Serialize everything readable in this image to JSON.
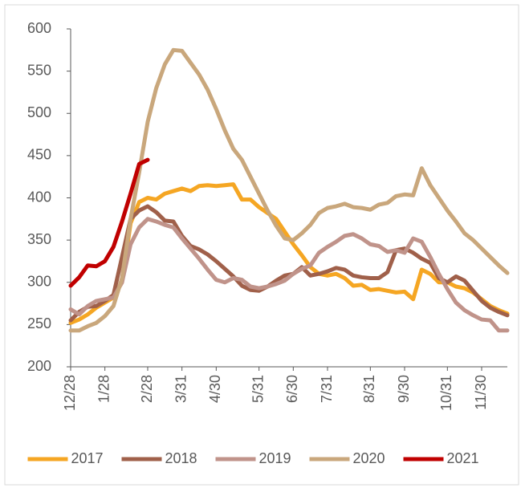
{
  "chart_data": {
    "type": "line",
    "categories": [
      "12/28",
      null,
      null,
      null,
      "1/28",
      null,
      null,
      null,
      null,
      "2/28",
      null,
      null,
      null,
      "3/31",
      null,
      null,
      null,
      "4/30",
      null,
      null,
      null,
      null,
      "5/31",
      null,
      null,
      null,
      "6/30",
      null,
      null,
      null,
      "7/31",
      null,
      null,
      null,
      null,
      "8/31",
      null,
      null,
      null,
      "9/30",
      null,
      null,
      null,
      null,
      "10/31",
      null,
      null,
      null,
      "11/30",
      null,
      null,
      null
    ],
    "series": [
      {
        "name": "2017",
        "color": "#f5a623",
        "values": [
          252,
          256,
          262,
          270,
          276,
          282,
          300,
          370,
          395,
          400,
          398,
          405,
          408,
          411,
          408,
          414,
          415,
          414,
          415,
          416,
          398,
          398,
          389,
          382,
          375,
          360,
          345,
          332,
          318,
          310,
          308,
          310,
          305,
          296,
          297,
          291,
          292,
          290,
          288,
          289,
          280,
          315,
          310,
          300,
          300,
          295,
          293,
          288,
          280,
          272,
          267,
          263
        ]
      },
      {
        "name": "2018",
        "color": "#a0604a",
        "values": [
          255,
          265,
          271,
          272,
          278,
          285,
          330,
          375,
          385,
          390,
          383,
          373,
          372,
          355,
          343,
          339,
          333,
          325,
          316,
          307,
          296,
          291,
          290,
          295,
          302,
          308,
          310,
          318,
          308,
          310,
          313,
          317,
          315,
          308,
          306,
          305,
          305,
          312,
          338,
          340,
          335,
          328,
          323,
          305,
          300,
          307,
          302,
          290,
          278,
          270,
          265,
          261
        ]
      },
      {
        "name": "2019",
        "color": "#c0938a",
        "values": [
          268,
          262,
          272,
          278,
          280,
          282,
          300,
          345,
          365,
          375,
          372,
          368,
          365,
          352,
          340,
          328,
          315,
          303,
          300,
          305,
          303,
          295,
          293,
          295,
          298,
          302,
          310,
          316,
          320,
          335,
          342,
          348,
          355,
          357,
          352,
          345,
          343,
          336,
          338,
          335,
          352,
          348,
          330,
          310,
          292,
          276,
          267,
          261,
          256,
          255,
          243,
          243
        ]
      },
      {
        "name": "2020",
        "color": "#c9a77c",
        "values": [
          243,
          243,
          248,
          252,
          260,
          272,
          305,
          375,
          430,
          490,
          530,
          558,
          575,
          574,
          560,
          546,
          528,
          505,
          480,
          458,
          445,
          425,
          405,
          385,
          367,
          352,
          350,
          358,
          368,
          382,
          388,
          390,
          393,
          389,
          388,
          386,
          392,
          394,
          402,
          404,
          403,
          435,
          415,
          400,
          385,
          372,
          358,
          350,
          340,
          330,
          320,
          311
        ]
      },
      {
        "name": "2021",
        "color": "#c00000",
        "values": [
          296,
          306,
          320,
          319,
          325,
          342,
          372,
          405,
          440,
          445,
          null,
          null,
          null,
          null,
          null,
          null,
          null,
          null,
          null,
          null,
          null,
          null,
          null,
          null,
          null,
          null,
          null,
          null,
          null,
          null,
          null,
          null,
          null,
          null,
          null,
          null,
          null,
          null,
          null,
          null,
          null,
          null,
          null,
          null,
          null,
          null,
          null,
          null,
          null,
          null,
          null,
          null
        ]
      }
    ],
    "ylim": [
      200,
      600
    ],
    "yticks": [
      200,
      250,
      300,
      350,
      400,
      450,
      500,
      550,
      600
    ],
    "grid": false,
    "legend": "bottom"
  }
}
